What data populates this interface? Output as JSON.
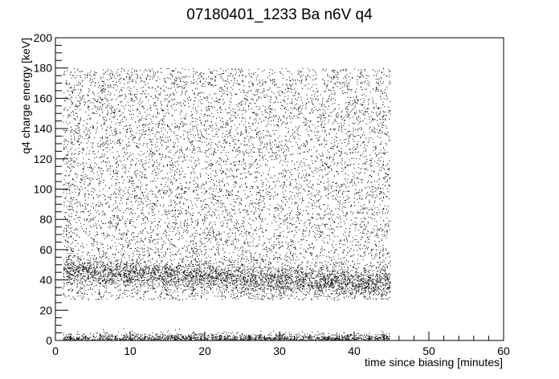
{
  "chart_data": {
    "type": "scatter",
    "title": "07180401_1233 Ba n6V q4",
    "xlabel": "time since biasing [minutes]",
    "ylabel": "q4 charge energy [keV]",
    "xlim": [
      0,
      60
    ],
    "ylim": [
      0,
      200
    ],
    "x_ticks": [
      0,
      10,
      20,
      30,
      40,
      50,
      60
    ],
    "y_ticks": [
      0,
      20,
      40,
      60,
      80,
      100,
      120,
      140,
      160,
      180,
      200
    ],
    "grid": false,
    "legend": "none",
    "marker_color": "#000000",
    "data_region": {
      "x_range": [
        1.0,
        44.8
      ],
      "broad_band_keV": [
        27,
        180
      ],
      "dense_band_keV": [
        32,
        55
      ],
      "low_band_keV": [
        0,
        9
      ],
      "gap_keV": [
        9,
        27
      ]
    }
  }
}
